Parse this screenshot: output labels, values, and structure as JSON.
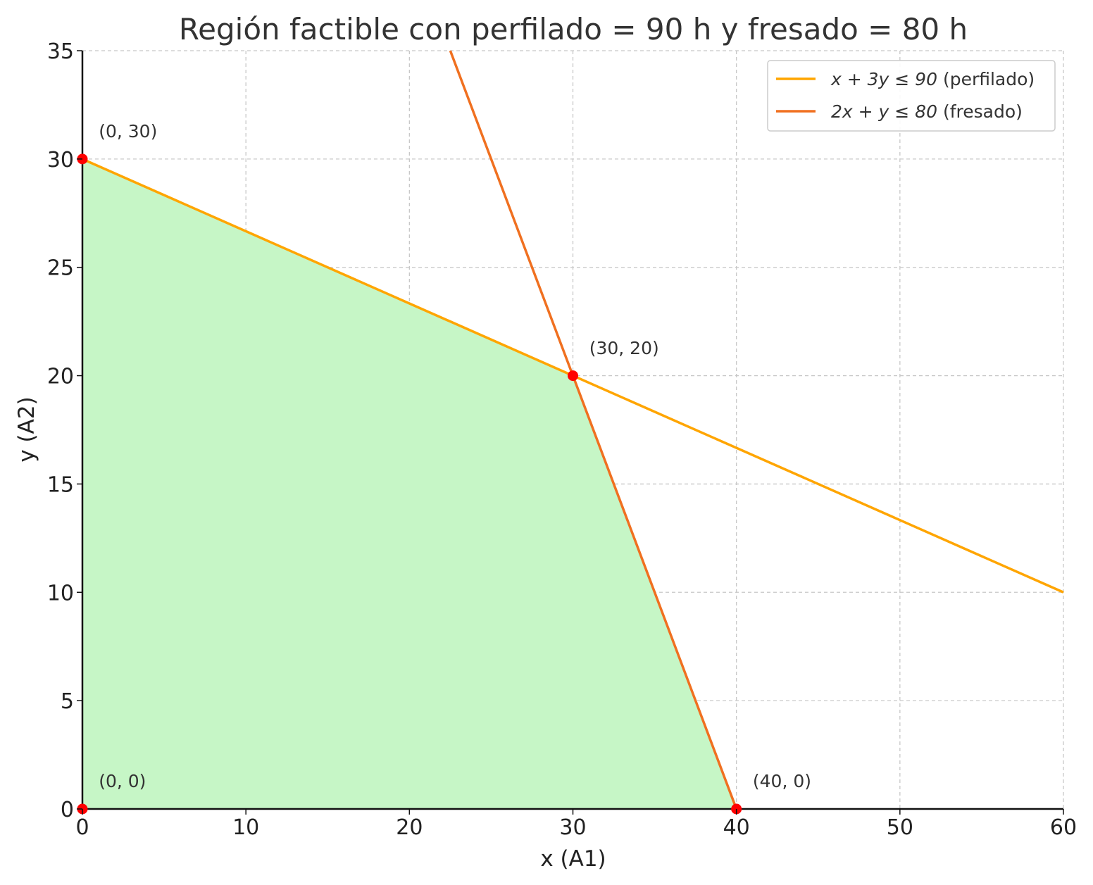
{
  "chart_data": {
    "type": "line",
    "title": "Región factible con perfilado = 90 h y fresado = 80 h",
    "xlabel": "x (A1)",
    "ylabel": "y (A2)",
    "xlim": [
      0,
      60
    ],
    "ylim": [
      0,
      35
    ],
    "xticks": [
      "0",
      "10",
      "20",
      "30",
      "40",
      "50",
      "60"
    ],
    "yticks": [
      "0",
      "5",
      "10",
      "15",
      "20",
      "25",
      "30",
      "35"
    ],
    "grid": true,
    "legend_position": "top-right",
    "series": [
      {
        "name": "x + 3y ≤ 90 (perfilado)",
        "legend_math": "x + 3y ≤ 90",
        "legend_note": " (perfilado)",
        "color": "#FFA500",
        "x": [
          0,
          60
        ],
        "y": [
          30,
          10
        ]
      },
      {
        "name": "2x + y ≤ 80 (fresado)",
        "legend_math": "2x + y ≤ 80",
        "legend_note": " (fresado)",
        "color": "#F07020",
        "x": [
          22.5,
          40
        ],
        "y": [
          35,
          0
        ]
      }
    ],
    "feasible_region": {
      "color": "#C6F6C6",
      "vertices": [
        [
          0,
          0
        ],
        [
          0,
          30
        ],
        [
          30,
          20
        ],
        [
          40,
          0
        ]
      ]
    },
    "points": [
      {
        "x": 0,
        "y": 30,
        "label": "(0, 30)"
      },
      {
        "x": 30,
        "y": 20,
        "label": "(30, 20)"
      },
      {
        "x": 40,
        "y": 0,
        "label": "(40, 0)"
      },
      {
        "x": 0,
        "y": 0,
        "label": "(0, 0)"
      }
    ],
    "point_color": "#FF0000"
  }
}
